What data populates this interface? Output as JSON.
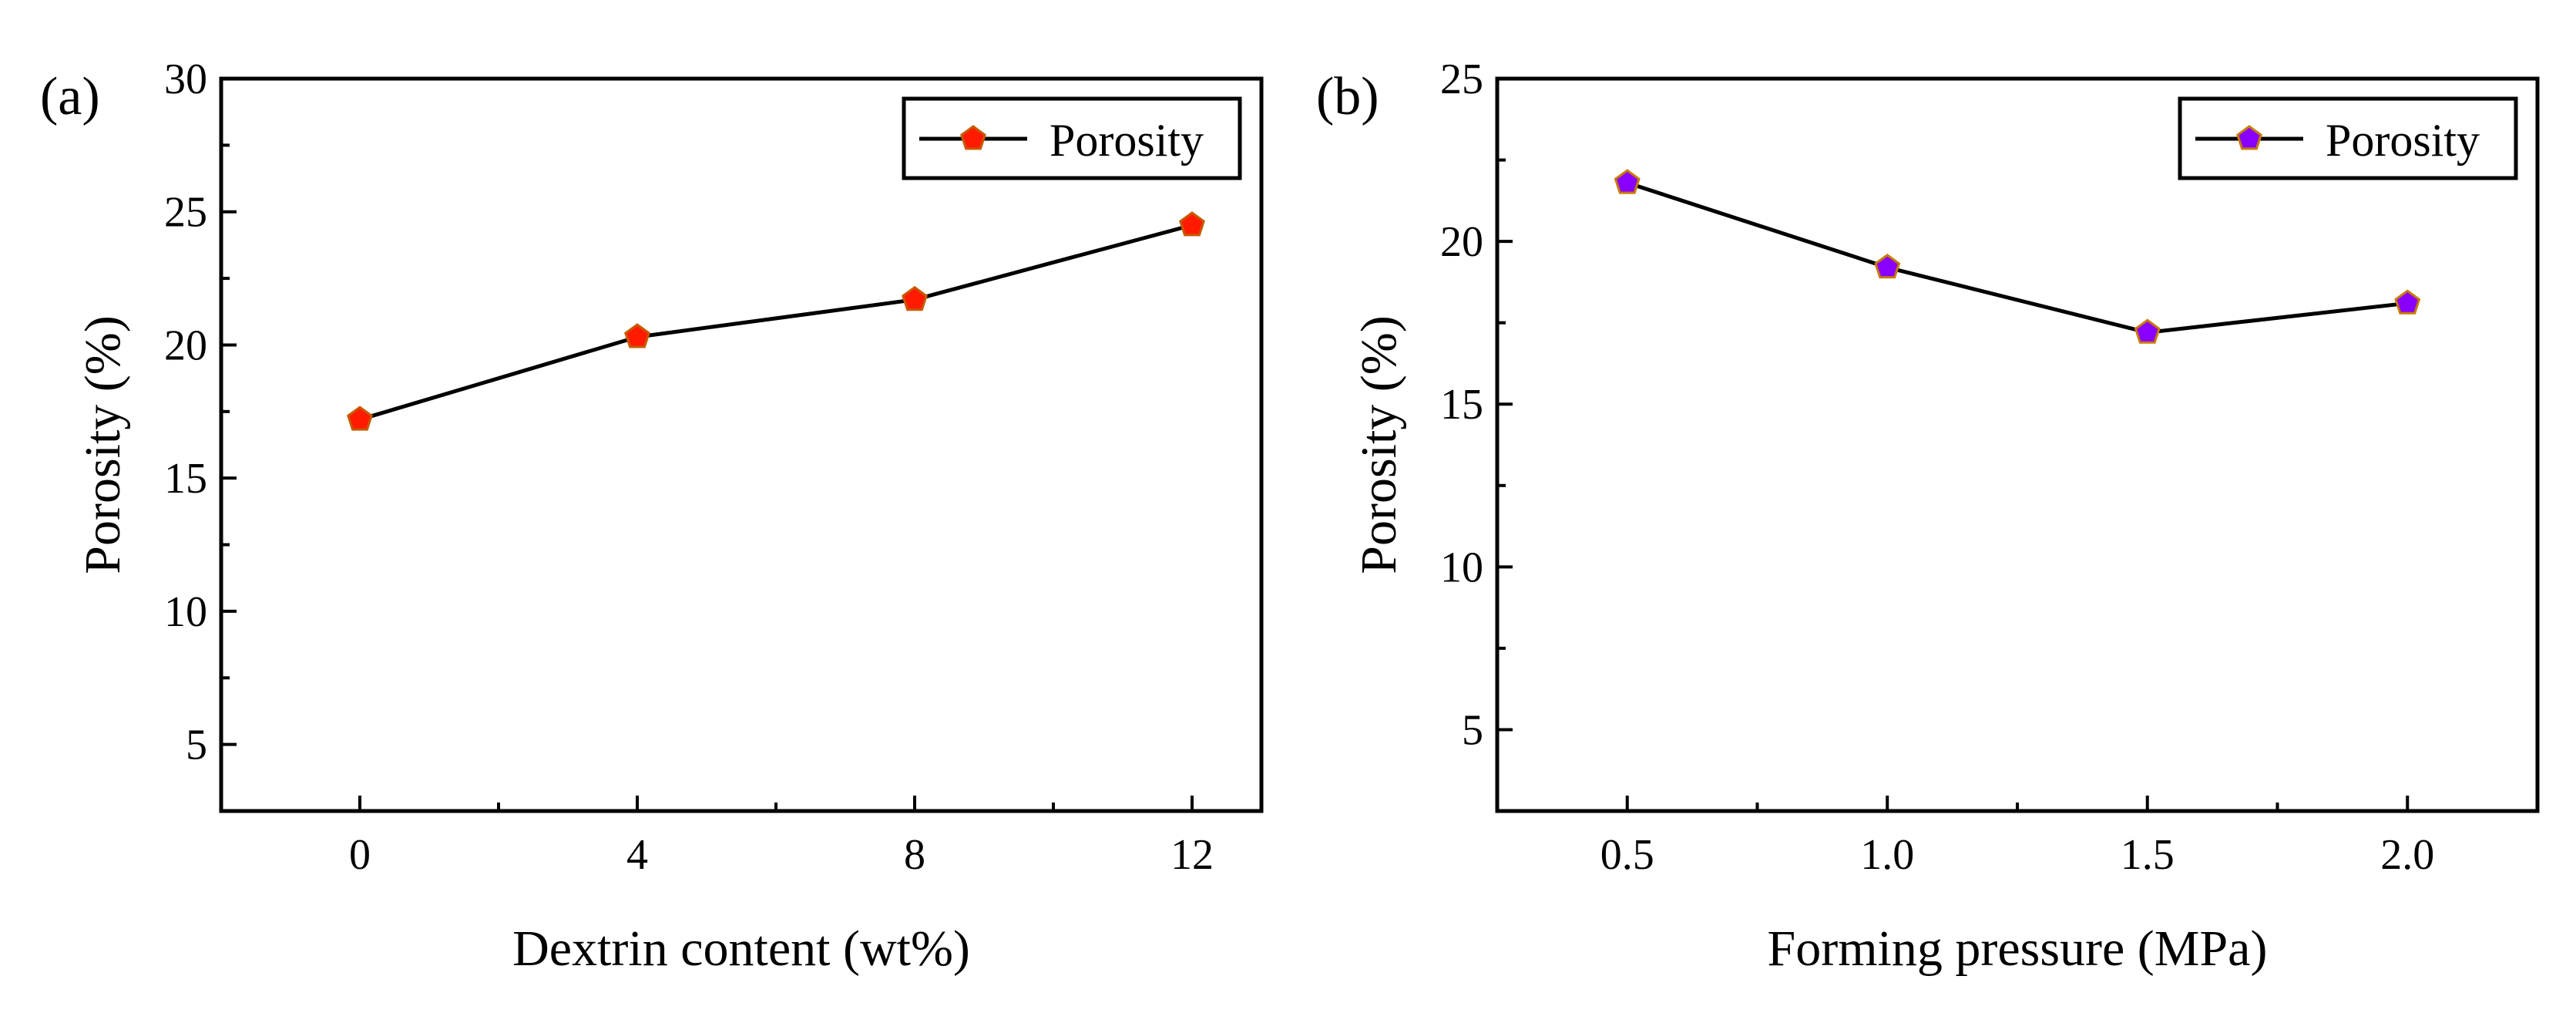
{
  "chart_data": [
    {
      "type": "line",
      "panel_label": "(a)",
      "xlabel": "Dextrin content (wt%)",
      "ylabel": "Porosity (%)",
      "x": [
        0,
        4,
        8,
        12
      ],
      "xticks": [
        "0",
        "4",
        "8",
        "12"
      ],
      "xlim": [
        -2,
        13
      ],
      "ylim": [
        2.5,
        30
      ],
      "yticks": [
        "5",
        "10",
        "15",
        "20",
        "25",
        "30"
      ],
      "series": [
        {
          "name": "Porosity",
          "values": [
            17.2,
            20.3,
            21.7,
            24.5
          ],
          "marker_color": "#ff1a00",
          "marker_edge": "#c85a00",
          "line_color": "#000000"
        }
      ],
      "legend": {
        "position": "top-right",
        "label": "Porosity"
      }
    },
    {
      "type": "line",
      "panel_label": "(b)",
      "xlabel": "Forming pressure (MPa)",
      "ylabel": "Porosity (%)",
      "x": [
        0.5,
        1.0,
        1.5,
        2.0
      ],
      "xticks": [
        "0.5",
        "1.0",
        "1.5",
        "2.0"
      ],
      "xlim": [
        0.25,
        2.25
      ],
      "ylim": [
        2.5,
        25
      ],
      "yticks": [
        "5",
        "10",
        "15",
        "20",
        "25"
      ],
      "series": [
        {
          "name": "Porosity",
          "values": [
            21.8,
            19.2,
            17.2,
            18.1
          ],
          "marker_color": "#8a00ff",
          "marker_edge": "#c87a00",
          "line_color": "#000000"
        }
      ],
      "legend": {
        "position": "top-right",
        "label": "Porosity"
      }
    }
  ]
}
